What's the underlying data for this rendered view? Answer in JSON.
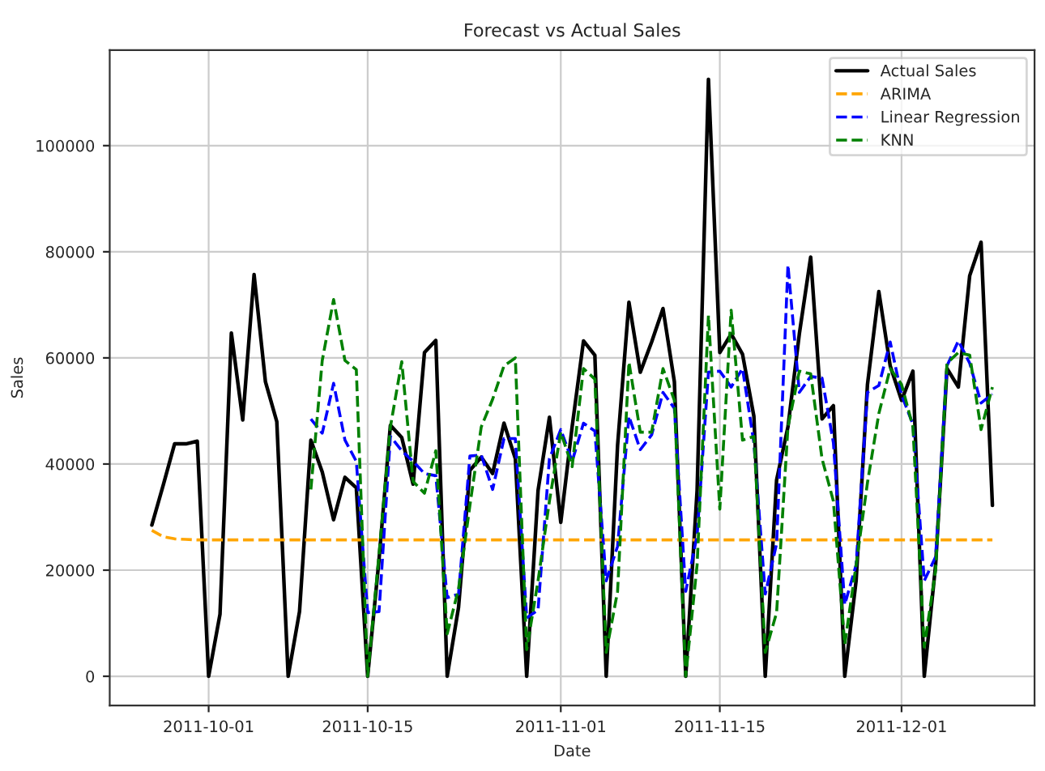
{
  "chart_data": {
    "type": "line",
    "title": "Forecast vs Actual Sales",
    "xlabel": "Date",
    "ylabel": "Sales",
    "x": [
      "2011-09-26",
      "2011-09-27",
      "2011-09-28",
      "2011-09-29",
      "2011-09-30",
      "2011-10-01",
      "2011-10-02",
      "2011-10-03",
      "2011-10-04",
      "2011-10-05",
      "2011-10-06",
      "2011-10-07",
      "2011-10-08",
      "2011-10-09",
      "2011-10-10",
      "2011-10-11",
      "2011-10-12",
      "2011-10-13",
      "2011-10-14",
      "2011-10-15",
      "2011-10-16",
      "2011-10-17",
      "2011-10-18",
      "2011-10-19",
      "2011-10-20",
      "2011-10-21",
      "2011-10-22",
      "2011-10-23",
      "2011-10-24",
      "2011-10-25",
      "2011-10-26",
      "2011-10-27",
      "2011-10-28",
      "2011-10-29",
      "2011-10-30",
      "2011-10-31",
      "2011-11-01",
      "2011-11-02",
      "2011-11-03",
      "2011-11-04",
      "2011-11-05",
      "2011-11-06",
      "2011-11-07",
      "2011-11-08",
      "2011-11-09",
      "2011-11-10",
      "2011-11-11",
      "2011-11-12",
      "2011-11-13",
      "2011-11-14",
      "2011-11-15",
      "2011-11-16",
      "2011-11-17",
      "2011-11-18",
      "2011-11-19",
      "2011-11-20",
      "2011-11-21",
      "2011-11-22",
      "2011-11-23",
      "2011-11-24",
      "2011-11-25",
      "2011-11-26",
      "2011-11-27",
      "2011-11-28",
      "2011-11-29",
      "2011-11-30",
      "2011-12-01",
      "2011-12-02",
      "2011-12-03",
      "2011-12-04",
      "2011-12-05",
      "2011-12-06",
      "2011-12-07",
      "2011-12-08",
      "2011-12-09"
    ],
    "series": [
      {
        "name": "Actual Sales",
        "color": "#000000",
        "line_style": "solid",
        "values": [
          28500,
          36000,
          43800,
          43800,
          44300,
          0,
          11700,
          64700,
          48300,
          75700,
          55500,
          48000,
          0,
          12200,
          44500,
          38500,
          29500,
          37500,
          35500,
          0,
          22000,
          47300,
          45000,
          36200,
          61000,
          63300,
          0,
          13000,
          38800,
          41300,
          38200,
          47700,
          41000,
          0,
          35000,
          48800,
          29000,
          47000,
          63200,
          60500,
          0,
          43500,
          70500,
          57300,
          63000,
          69300,
          55500,
          0,
          35000,
          112500,
          61000,
          64500,
          60700,
          49000,
          0,
          37000,
          47000,
          64500,
          79000,
          48500,
          51000,
          0,
          18000,
          55000,
          72500,
          58500,
          52000,
          57500,
          0,
          21000,
          58000,
          54500,
          75500,
          81800,
          32200
        ]
      },
      {
        "name": "ARIMA",
        "color": "#ffa500",
        "line_style": "dashed",
        "values": [
          27500,
          26300,
          25900,
          25800,
          25700,
          25700,
          25700,
          25700,
          25700,
          25700,
          25700,
          25700,
          25700,
          25700,
          25700,
          25700,
          25700,
          25700,
          25700,
          25700,
          25700,
          25700,
          25700,
          25700,
          25700,
          25700,
          25700,
          25700,
          25700,
          25700,
          25700,
          25700,
          25700,
          25700,
          25700,
          25700,
          25700,
          25700,
          25700,
          25700,
          25700,
          25700,
          25700,
          25700,
          25700,
          25700,
          25700,
          25700,
          25700,
          25700,
          25700,
          25700,
          25700,
          25700,
          25700,
          25700,
          25700,
          25700,
          25700,
          25700,
          25700,
          25700,
          25700,
          25700,
          25700,
          25700,
          25700,
          25700,
          25700,
          25700,
          25700,
          25700,
          25700,
          25700,
          25700
        ]
      },
      {
        "name": "Linear Regression",
        "color": "#0000ff",
        "line_style": "dashed",
        "values": [
          null,
          null,
          null,
          null,
          null,
          null,
          null,
          null,
          null,
          null,
          null,
          null,
          null,
          null,
          48500,
          45800,
          55200,
          44500,
          40500,
          12000,
          12200,
          45200,
          42500,
          40500,
          38200,
          37800,
          14800,
          15500,
          41500,
          41700,
          35200,
          44800,
          44800,
          11000,
          12500,
          41000,
          46500,
          40500,
          47700,
          46200,
          18000,
          24500,
          49000,
          42700,
          45500,
          53500,
          50500,
          16000,
          26500,
          57300,
          57500,
          54500,
          58000,
          44000,
          15500,
          25000,
          77500,
          53500,
          56500,
          56200,
          44000,
          13500,
          21000,
          53500,
          54800,
          63000,
          53000,
          47500,
          18000,
          22500,
          58500,
          63200,
          59000,
          51500,
          53200
        ]
      },
      {
        "name": "KNN",
        "color": "#008000",
        "line_style": "dashed",
        "values": [
          null,
          null,
          null,
          null,
          null,
          null,
          null,
          null,
          null,
          null,
          null,
          null,
          null,
          null,
          35200,
          59500,
          71000,
          59500,
          57800,
          0,
          23000,
          47000,
          59300,
          36700,
          34500,
          42500,
          8000,
          16500,
          32200,
          47000,
          52200,
          58500,
          60000,
          5000,
          18000,
          33000,
          46000,
          39500,
          58000,
          56000,
          4500,
          16000,
          59200,
          46000,
          46000,
          58000,
          52000,
          0,
          21000,
          68000,
          31500,
          69000,
          44500,
          45200,
          4500,
          12000,
          47000,
          57500,
          57000,
          41000,
          33000,
          6000,
          21000,
          36500,
          49500,
          58000,
          55000,
          47000,
          5500,
          20000,
          59000,
          61000,
          60500,
          46500,
          54500
        ]
      }
    ],
    "xlim": [
      "2011-09-22T07:00",
      "2011-12-12T17:00"
    ],
    "xticks": [
      "2011-10-01",
      "2011-10-15",
      "2011-11-01",
      "2011-11-15",
      "2011-12-01"
    ],
    "ylim": [
      -5500,
      118000
    ],
    "yticks": [
      0,
      20000,
      40000,
      60000,
      80000,
      100000
    ],
    "grid": true,
    "legend": "top right"
  }
}
